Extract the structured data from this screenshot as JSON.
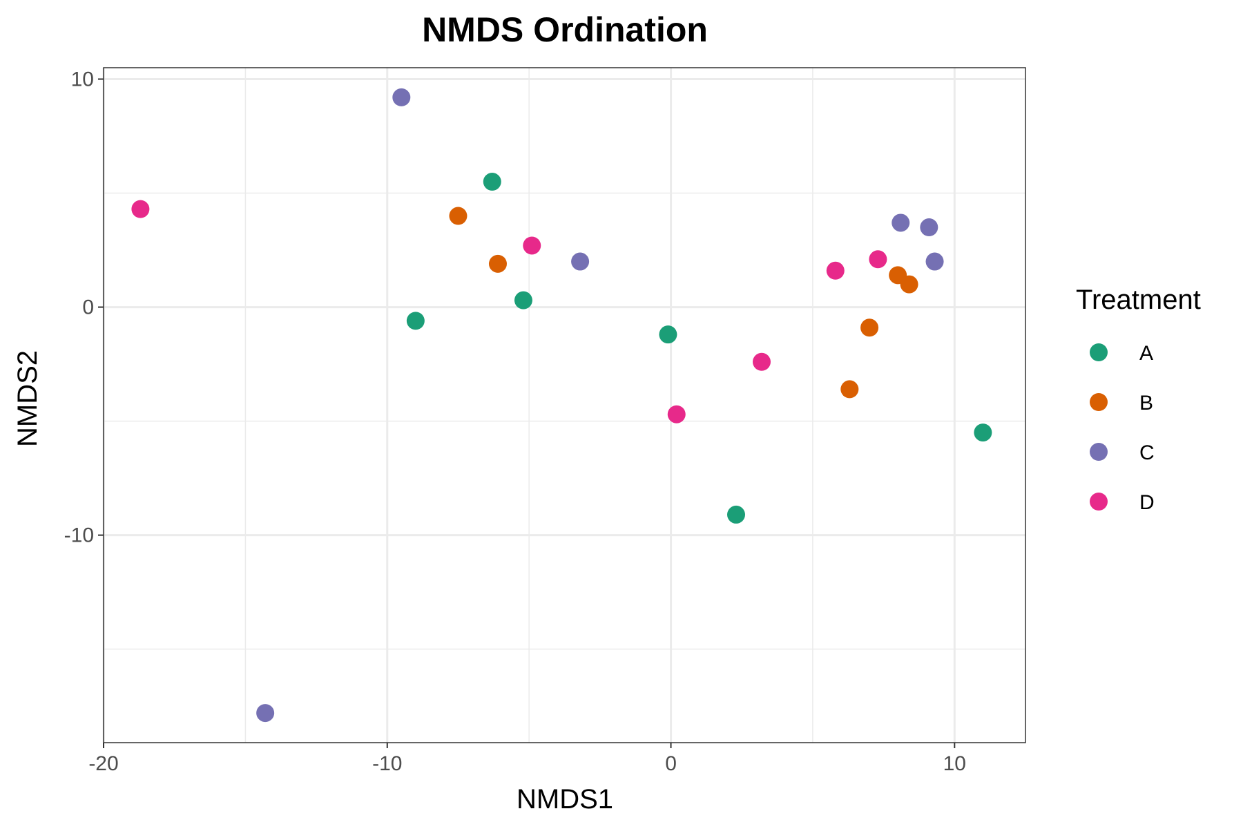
{
  "chart_data": {
    "type": "scatter",
    "title": "NMDS Ordination",
    "xlabel": "NMDS1",
    "ylabel": "NMDS2",
    "xlim": [
      -20,
      12.5
    ],
    "ylim": [
      -19.1,
      10.5
    ],
    "x_ticks": [
      -20,
      -10,
      0,
      10
    ],
    "y_ticks": [
      -10,
      0,
      10
    ],
    "x_tick_labels": [
      "-20",
      "-10",
      "0",
      "10"
    ],
    "y_tick_labels": [
      "-10",
      "0",
      "10"
    ],
    "grid": true,
    "legend": {
      "title": "Treatment",
      "position": "right"
    },
    "series": [
      {
        "name": "A",
        "color": "#1b9e77",
        "points": [
          {
            "x": -6.3,
            "y": 5.5
          },
          {
            "x": -5.2,
            "y": 0.3
          },
          {
            "x": -9.0,
            "y": -0.6
          },
          {
            "x": -0.1,
            "y": -1.2
          },
          {
            "x": 2.3,
            "y": -9.1
          },
          {
            "x": 11.0,
            "y": -5.5
          }
        ]
      },
      {
        "name": "B",
        "color": "#d95f02",
        "points": [
          {
            "x": -7.5,
            "y": 4.0
          },
          {
            "x": -6.1,
            "y": 1.9
          },
          {
            "x": 7.0,
            "y": -0.9
          },
          {
            "x": 6.3,
            "y": -3.6
          },
          {
            "x": 8.0,
            "y": 1.4
          },
          {
            "x": 8.4,
            "y": 1.0
          }
        ]
      },
      {
        "name": "C",
        "color": "#7570b3",
        "points": [
          {
            "x": -9.5,
            "y": 9.2
          },
          {
            "x": -3.2,
            "y": 2.0
          },
          {
            "x": 8.1,
            "y": 3.7
          },
          {
            "x": 9.1,
            "y": 3.5
          },
          {
            "x": 9.3,
            "y": 2.0
          },
          {
            "x": -14.3,
            "y": -17.8
          }
        ]
      },
      {
        "name": "D",
        "color": "#e7298a",
        "points": [
          {
            "x": -18.7,
            "y": 4.3
          },
          {
            "x": -4.9,
            "y": 2.7
          },
          {
            "x": 5.8,
            "y": 1.6
          },
          {
            "x": 7.3,
            "y": 2.1
          },
          {
            "x": 3.2,
            "y": -2.4
          },
          {
            "x": 0.2,
            "y": -4.7
          }
        ]
      }
    ]
  }
}
